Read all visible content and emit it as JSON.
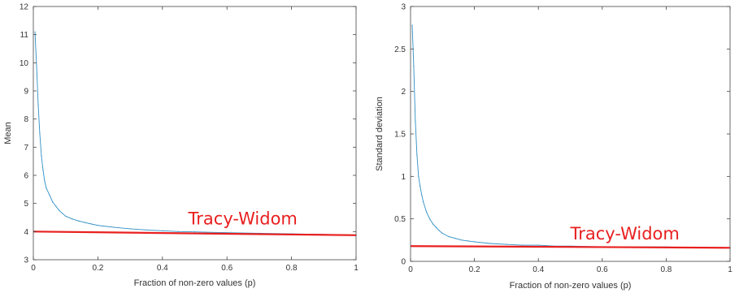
{
  "chart_data": [
    {
      "type": "line",
      "xlabel": "Fraction of non-zero values (p)",
      "ylabel": "Mean",
      "xlim": [
        0,
        1
      ],
      "ylim": [
        3,
        12
      ],
      "xticks": [
        "0",
        "0.2",
        "0.4",
        "0.6",
        "0.8",
        "1"
      ],
      "yticks": [
        "3",
        "4",
        "5",
        "6",
        "7",
        "8",
        "9",
        "10",
        "11",
        "12"
      ],
      "grid": false,
      "series": [
        {
          "color": "#2f8fc4",
          "x": [
            0.005,
            0.01,
            0.015,
            0.02,
            0.025,
            0.03,
            0.035,
            0.04,
            0.05,
            0.06,
            0.07,
            0.08,
            0.09,
            0.1,
            0.12,
            0.14,
            0.16,
            0.18,
            0.2,
            0.25,
            0.3,
            0.35,
            0.4,
            0.45,
            0.5,
            0.6,
            0.7,
            0.8,
            0.9,
            1.0
          ],
          "y": [
            11.1,
            9.9,
            8.5,
            7.5,
            6.7,
            6.2,
            5.8,
            5.55,
            5.3,
            5.05,
            4.9,
            4.75,
            4.65,
            4.55,
            4.45,
            4.38,
            4.32,
            4.27,
            4.22,
            4.15,
            4.1,
            4.06,
            4.03,
            4.0,
            3.99,
            3.96,
            3.94,
            3.92,
            3.9,
            3.88
          ]
        },
        {
          "color": "#e8201f",
          "x": [
            0,
            1
          ],
          "y": [
            4.0,
            3.87
          ]
        }
      ],
      "annotations": [
        {
          "text": "Tracy-Widom",
          "color": "#e8201f",
          "x": 0.48,
          "y": 4.25
        }
      ]
    },
    {
      "type": "line",
      "xlabel": "Fraction of non-zero values (p)",
      "ylabel": "Standard deviation",
      "xlim": [
        0,
        1
      ],
      "ylim": [
        0,
        3
      ],
      "xticks": [
        "0",
        "0.2",
        "0.4",
        "0.6",
        "0.8",
        "1"
      ],
      "yticks": [
        "0",
        "0.5",
        "1",
        "1.5",
        "2",
        "2.5",
        "3"
      ],
      "grid": false,
      "series": [
        {
          "color": "#2f8fc4",
          "x": [
            0.005,
            0.01,
            0.015,
            0.02,
            0.025,
            0.03,
            0.035,
            0.04,
            0.05,
            0.06,
            0.07,
            0.08,
            0.09,
            0.1,
            0.12,
            0.14,
            0.16,
            0.18,
            0.2,
            0.25,
            0.3,
            0.35,
            0.4,
            0.45,
            0.5,
            0.6,
            0.7,
            0.8,
            0.9,
            1.0
          ],
          "y": [
            2.78,
            2.3,
            1.65,
            1.25,
            1.0,
            0.88,
            0.78,
            0.7,
            0.58,
            0.5,
            0.44,
            0.4,
            0.36,
            0.33,
            0.29,
            0.27,
            0.25,
            0.24,
            0.23,
            0.21,
            0.2,
            0.19,
            0.19,
            0.18,
            0.18,
            0.17,
            0.17,
            0.17,
            0.16,
            0.16
          ]
        },
        {
          "color": "#e8201f",
          "x": [
            0,
            1
          ],
          "y": [
            0.18,
            0.16
          ]
        }
      ],
      "annotations": [
        {
          "text": "Tracy-Widom",
          "color": "#e8201f",
          "x": 0.5,
          "y": 0.26
        }
      ]
    }
  ]
}
